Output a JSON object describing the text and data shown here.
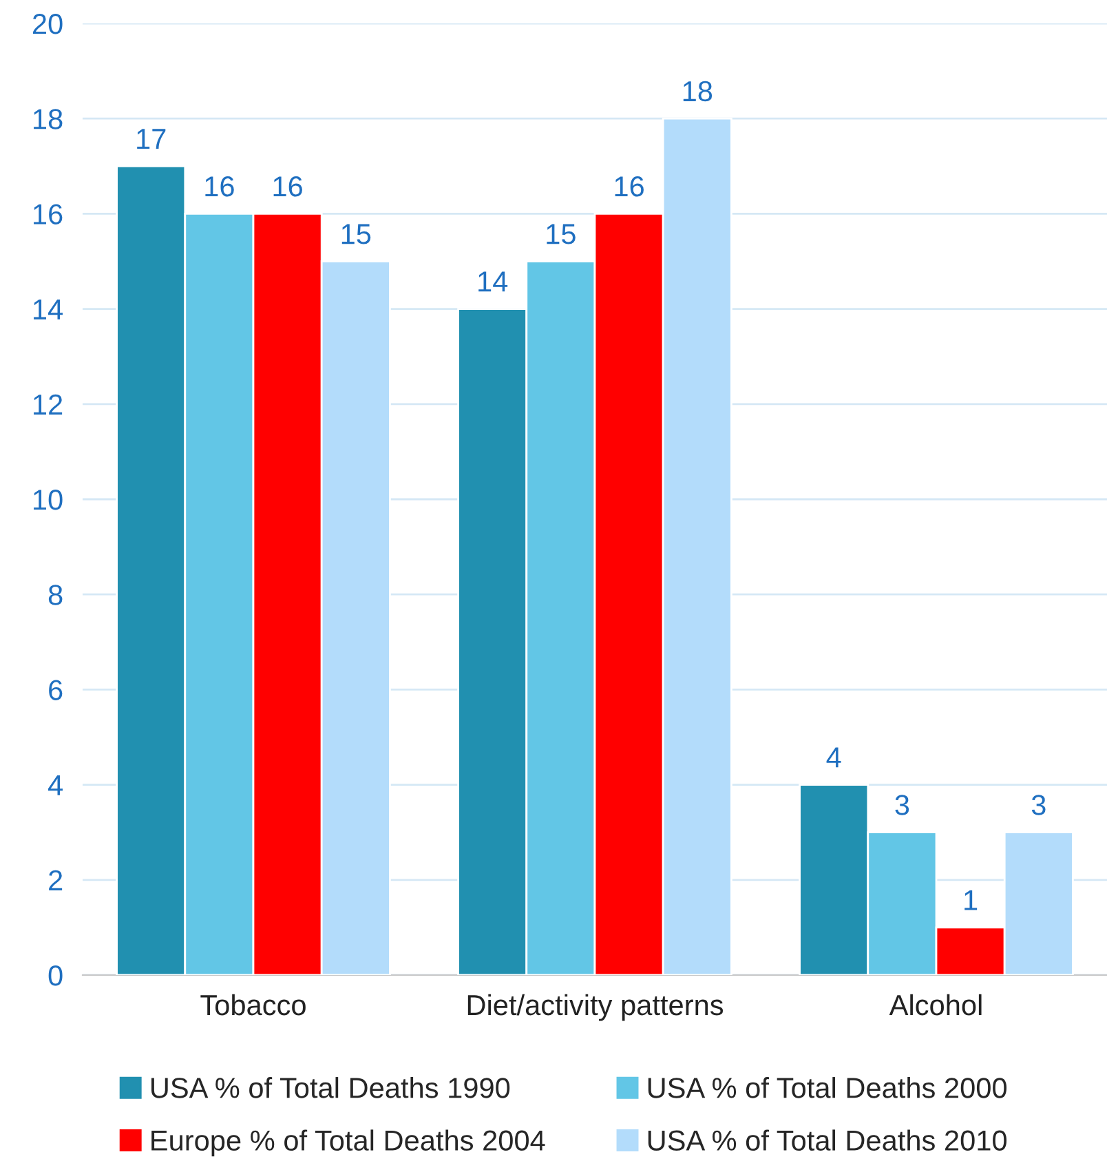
{
  "chart_data": {
    "type": "bar",
    "categories": [
      "Tobacco",
      "Diet/activity patterns",
      "Alcohol"
    ],
    "series": [
      {
        "name": "USA % of Total Deaths 1990",
        "color": "#2190b0",
        "values": [
          17,
          14,
          4
        ]
      },
      {
        "name": "USA % of Total Deaths 2000",
        "color": "#62c6e6",
        "values": [
          16,
          15,
          3
        ]
      },
      {
        "name": "Europe % of Total Deaths 2004",
        "color": "#ff0000",
        "values": [
          16,
          16,
          1
        ]
      },
      {
        "name": "USA % of Total Deaths 2010",
        "color": "#b3dcfb",
        "values": [
          15,
          18,
          3
        ]
      }
    ],
    "ylim": [
      0,
      20
    ],
    "yticks": [
      0,
      2,
      4,
      6,
      8,
      10,
      12,
      14,
      16,
      18,
      20
    ],
    "grid": "y",
    "legend": "bottom",
    "data_labels": true
  }
}
